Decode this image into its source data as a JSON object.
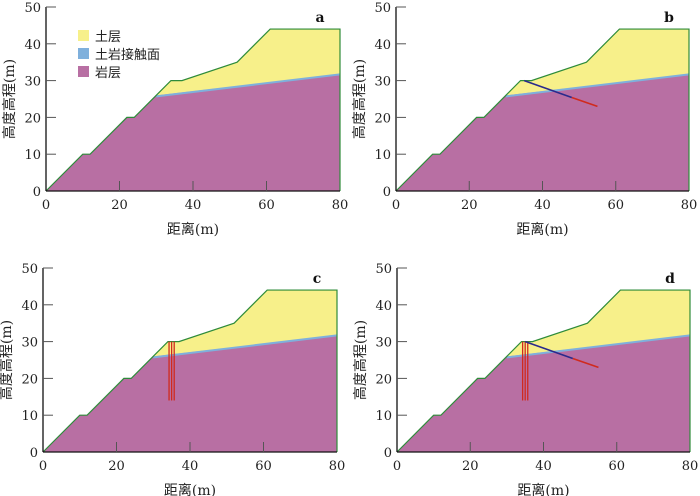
{
  "colors": {
    "soil": "#f7f08a",
    "interface": "#7fb0dc",
    "rock": "#b86fa3",
    "outline": "#2e8b3a",
    "pile": "#d02a1e",
    "anchor_free": "#2a2a8c",
    "anchor_bond": "#d02a1e"
  },
  "legend": {
    "items": [
      {
        "label": "土层",
        "color": "#f7f08a"
      },
      {
        "label": "土岩接触面",
        "color": "#7fb0dc"
      },
      {
        "label": "岩层",
        "color": "#b86fa3"
      }
    ]
  },
  "axes": {
    "xlabel": "距离(m)",
    "ylabel": "高度高程(m)",
    "xticks": [
      0,
      20,
      40,
      60,
      80
    ],
    "yticks": [
      0,
      10,
      20,
      30,
      40,
      50
    ],
    "xlim": [
      0,
      80
    ],
    "ylim": [
      0,
      50
    ]
  },
  "geometry": {
    "ground_profile": [
      [
        0,
        0
      ],
      [
        10,
        10
      ],
      [
        12,
        10
      ],
      [
        22,
        20
      ],
      [
        24,
        20
      ],
      [
        30,
        26
      ],
      [
        34,
        30
      ],
      [
        37,
        30
      ],
      [
        52,
        35
      ],
      [
        61,
        44
      ],
      [
        80,
        44
      ]
    ],
    "interface": [
      [
        30,
        25.7
      ],
      [
        80,
        31.7
      ]
    ],
    "anchor": {
      "head": [
        35,
        30
      ],
      "bond_start": [
        48,
        25.4
      ],
      "end": [
        55,
        23
      ]
    },
    "piles": {
      "x": [
        34.3,
        35.0,
        35.7
      ],
      "top": 30,
      "bottom": 14
    }
  },
  "panels": [
    {
      "label": "a",
      "legend": true,
      "anchor": false,
      "piles": false
    },
    {
      "label": "b",
      "legend": false,
      "anchor": true,
      "piles": false
    },
    {
      "label": "c",
      "legend": false,
      "anchor": false,
      "piles": true
    },
    {
      "label": "d",
      "legend": false,
      "anchor": true,
      "piles": true
    }
  ]
}
